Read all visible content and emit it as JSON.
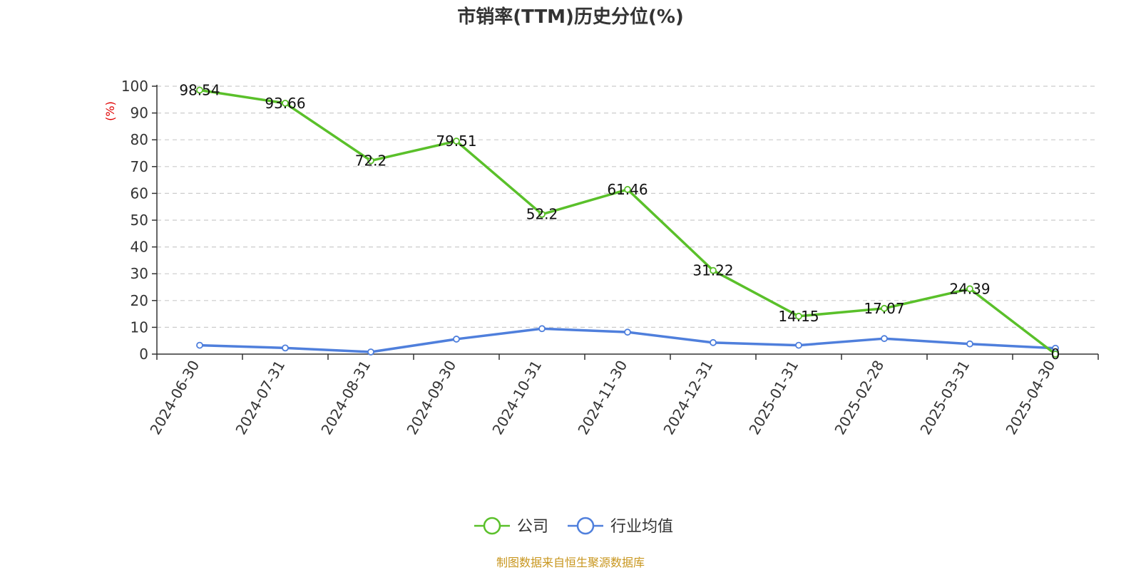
{
  "chart_data": {
    "type": "line",
    "title": "市销率(TTM)历史分位(%)",
    "ylabel": "(%)",
    "ylim": [
      0,
      100
    ],
    "yticks": [
      0,
      10,
      20,
      30,
      40,
      50,
      60,
      70,
      80,
      90,
      100
    ],
    "grid": true,
    "legend_position": "bottom-center",
    "categories": [
      "2024-06-30",
      "2024-07-31",
      "2024-08-31",
      "2024-09-30",
      "2024-10-31",
      "2024-11-30",
      "2024-12-31",
      "2025-01-31",
      "2025-02-28",
      "2025-03-31",
      "2025-04-30"
    ],
    "series": [
      {
        "name": "公司",
        "color": "#5ac02a",
        "show_labels": true,
        "values": [
          98.54,
          93.66,
          72.2,
          79.51,
          52.2,
          61.46,
          31.22,
          14.15,
          17.07,
          24.39,
          0
        ]
      },
      {
        "name": "行业均值",
        "color": "#4f7fdc",
        "show_labels": false,
        "values": [
          3.3,
          2.3,
          0.8,
          5.6,
          9.5,
          8.2,
          4.3,
          3.3,
          5.8,
          3.8,
          2.2
        ]
      }
    ]
  },
  "source_text": "制图数据来自恒生聚源数据库",
  "colors": {
    "title": "#333333",
    "axis": "#333333",
    "grid": "#cccccc",
    "unit": "#e00000",
    "source": "#c8961e"
  }
}
